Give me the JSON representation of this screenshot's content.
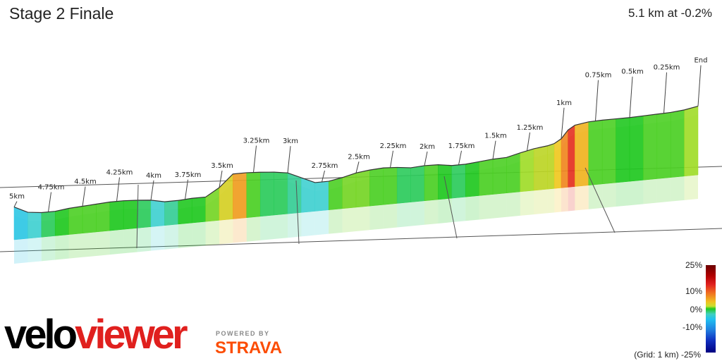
{
  "header": {
    "title": "Stage 2 Finale",
    "stats": "5.1 km at -0.2%"
  },
  "chart_data": {
    "type": "area",
    "title": "Stage 2 Finale",
    "subtitle": "5.1 km at -0.2%",
    "xlabel": "",
    "ylabel": "",
    "grid": "1 km",
    "distance_markers": [
      "5km",
      "4.75km",
      "4.5km",
      "4.25km",
      "4km",
      "3.75km",
      "3.5km",
      "3.25km",
      "3km",
      "2.75km",
      "2.5km",
      "2.25km",
      "2km",
      "1.75km",
      "1.5km",
      "1.25km",
      "1km",
      "0.75km",
      "0.5km",
      "0.25km",
      "End"
    ],
    "series": [
      {
        "name": "",
        "x": [
          5.0,
          4.9,
          4.8,
          4.7,
          4.6,
          4.5,
          4.4,
          4.3,
          4.2,
          4.1,
          4.0,
          3.9,
          3.8,
          3.7,
          3.6,
          3.5,
          3.4,
          3.3,
          3.2,
          3.1,
          3.0,
          2.9,
          2.8,
          2.7,
          2.6,
          2.5,
          2.4,
          2.3,
          2.2,
          2.1,
          2.0,
          1.9,
          1.8,
          1.7,
          1.6,
          1.5,
          1.4,
          1.3,
          1.2,
          1.1,
          1.05,
          1.0,
          0.95,
          0.9,
          0.8,
          0.7,
          0.6,
          0.5,
          0.4,
          0.3,
          0.2,
          0.1,
          0.0
        ],
        "elevation": [
          8.0,
          6.4,
          6.0,
          6.0,
          6.4,
          6.6,
          6.8,
          7.0,
          7.0,
          6.8,
          6.5,
          5.8,
          5.8,
          6.0,
          6.0,
          8.0,
          11.0,
          11.0,
          10.8,
          10.5,
          10.0,
          8.5,
          7.0,
          7.0,
          7.6,
          8.4,
          8.8,
          9.0,
          8.8,
          8.4,
          8.6,
          8.5,
          8.0,
          8.0,
          8.3,
          8.6,
          8.7,
          9.5,
          10.2,
          10.6,
          11.0,
          12.0,
          14.0,
          15.0,
          15.5,
          15.6,
          15.6,
          15.6,
          15.7,
          15.8,
          15.9,
          16.2,
          16.8
        ],
        "gradient_pct": [
          -6,
          -3,
          -1,
          0,
          1,
          1,
          1,
          0,
          0,
          -1,
          -3,
          -2,
          0,
          0,
          2,
          5,
          8,
          1,
          -1,
          -1,
          -2,
          -3,
          -3,
          1,
          2,
          2,
          1,
          1,
          -1,
          -1,
          1,
          0,
          -1,
          0,
          1,
          1,
          1,
          3,
          4,
          4,
          6,
          9,
          14,
          7,
          1,
          1,
          0,
          0,
          1,
          1,
          1,
          3,
          6
        ]
      }
    ]
  },
  "legend": {
    "colors": [
      "#6b0000",
      "#e02020",
      "#f0c020",
      "#20c820",
      "#20c0f0",
      "#1030c0",
      "#000080"
    ],
    "labels": [
      "25%",
      "10%",
      "0%",
      "-10%",
      "-25%"
    ],
    "grid_note": "(Grid: 1 km)"
  },
  "branding": {
    "velo": "velo",
    "viewer": "viewer",
    "powered_by": "POWERED BY",
    "strava": "STRAVA"
  }
}
